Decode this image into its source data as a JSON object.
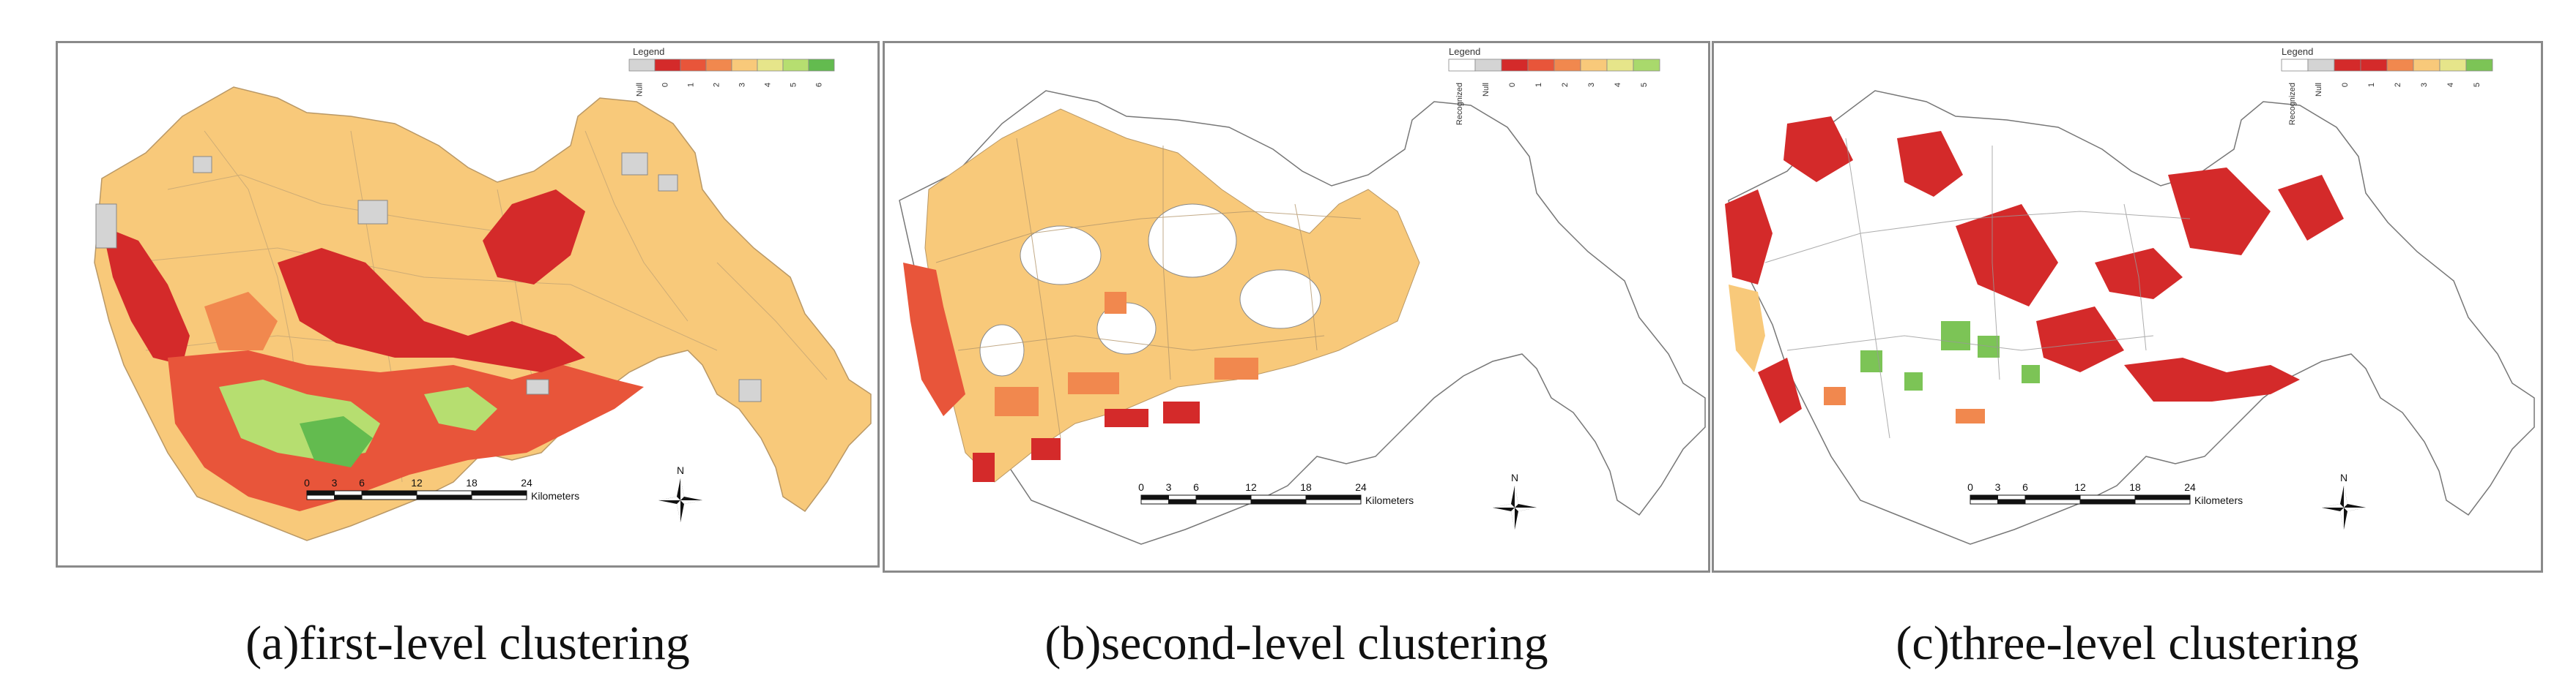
{
  "panels": [
    {
      "id": "a",
      "caption": "(a)first-level clustering",
      "legend": {
        "title": "Legend",
        "items": [
          {
            "label": "Null",
            "color": "#d4d4d4"
          },
          {
            "label": "0",
            "color": "#d42a2a"
          },
          {
            "label": "1",
            "color": "#e8553a"
          },
          {
            "label": "2",
            "color": "#f1884e"
          },
          {
            "label": "3",
            "color": "#f8c97a"
          },
          {
            "label": "4",
            "color": "#e6e58a"
          },
          {
            "label": "5",
            "color": "#b6de70"
          },
          {
            "label": "6",
            "color": "#63bb4f"
          }
        ]
      },
      "scale_bar": {
        "ticks": [
          "0",
          "3",
          "6",
          "12",
          "18",
          "24"
        ],
        "unit": "Kilometers"
      },
      "north_label": "N"
    },
    {
      "id": "b",
      "caption": "(b)second-level clustering",
      "legend": {
        "title": "Legend",
        "items": [
          {
            "label": "Recognized",
            "color": "#ffffff"
          },
          {
            "label": "Null",
            "color": "#d4d4d4"
          },
          {
            "label": "0",
            "color": "#d42a2a"
          },
          {
            "label": "1",
            "color": "#e8553a"
          },
          {
            "label": "2",
            "color": "#f1884e"
          },
          {
            "label": "3",
            "color": "#f8c97a"
          },
          {
            "label": "4",
            "color": "#e6e58a"
          },
          {
            "label": "5",
            "color": "#a9d96c"
          }
        ]
      },
      "scale_bar": {
        "ticks": [
          "0",
          "3",
          "6",
          "12",
          "18",
          "24"
        ],
        "unit": "Kilometers"
      },
      "north_label": "N"
    },
    {
      "id": "c",
      "caption": "(c)three-level clustering",
      "legend": {
        "title": "Legend",
        "items": [
          {
            "label": "Recognized",
            "color": "#ffffff"
          },
          {
            "label": "Null",
            "color": "#d4d4d4"
          },
          {
            "label": "0",
            "color": "#d42a2a"
          },
          {
            "label": "1",
            "color": "#d42a2a"
          },
          {
            "label": "2",
            "color": "#f1884e"
          },
          {
            "label": "3",
            "color": "#f8c97a"
          },
          {
            "label": "4",
            "color": "#e6e58a"
          },
          {
            "label": "5",
            "color": "#7cc456"
          }
        ]
      },
      "scale_bar": {
        "ticks": [
          "0",
          "3",
          "6",
          "12",
          "18",
          "24"
        ],
        "unit": "Kilometers"
      },
      "north_label": "N"
    }
  ]
}
